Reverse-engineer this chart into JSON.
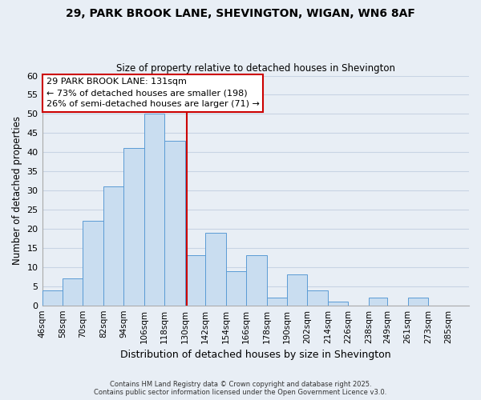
{
  "title": "29, PARK BROOK LANE, SHEVINGTON, WIGAN, WN6 8AF",
  "subtitle": "Size of property relative to detached houses in Shevington",
  "xlabel": "Distribution of detached houses by size in Shevington",
  "ylabel": "Number of detached properties",
  "bar_edges": [
    46,
    58,
    70,
    82,
    94,
    106,
    118,
    130,
    142,
    154,
    166,
    178,
    190,
    202,
    214,
    226,
    238,
    249,
    261,
    273,
    285
  ],
  "bar_heights": [
    4,
    7,
    22,
    31,
    41,
    50,
    43,
    13,
    19,
    9,
    13,
    2,
    8,
    4,
    1,
    0,
    2,
    0,
    2,
    0
  ],
  "bar_color": "#c9ddf0",
  "bar_edgecolor": "#5b9bd5",
  "vline_x": 131,
  "vline_color": "#cc0000",
  "annotation_title": "29 PARK BROOK LANE: 131sqm",
  "annotation_line1": "← 73% of detached houses are smaller (198)",
  "annotation_line2": "26% of semi-detached houses are larger (71) →",
  "annotation_box_edgecolor": "#cc0000",
  "annotation_box_facecolor": "#ffffff",
  "ylim": [
    0,
    60
  ],
  "yticks": [
    0,
    5,
    10,
    15,
    20,
    25,
    30,
    35,
    40,
    45,
    50,
    55,
    60
  ],
  "grid_color": "#c8d4e3",
  "background_color": "#e8eef5",
  "footer_line1": "Contains HM Land Registry data © Crown copyright and database right 2025.",
  "footer_line2": "Contains public sector information licensed under the Open Government Licence v3.0.",
  "tick_labels": [
    "46sqm",
    "58sqm",
    "70sqm",
    "82sqm",
    "94sqm",
    "106sqm",
    "118sqm",
    "130sqm",
    "142sqm",
    "154sqm",
    "166sqm",
    "178sqm",
    "190sqm",
    "202sqm",
    "214sqm",
    "226sqm",
    "238sqm",
    "249sqm",
    "261sqm",
    "273sqm",
    "285sqm"
  ]
}
